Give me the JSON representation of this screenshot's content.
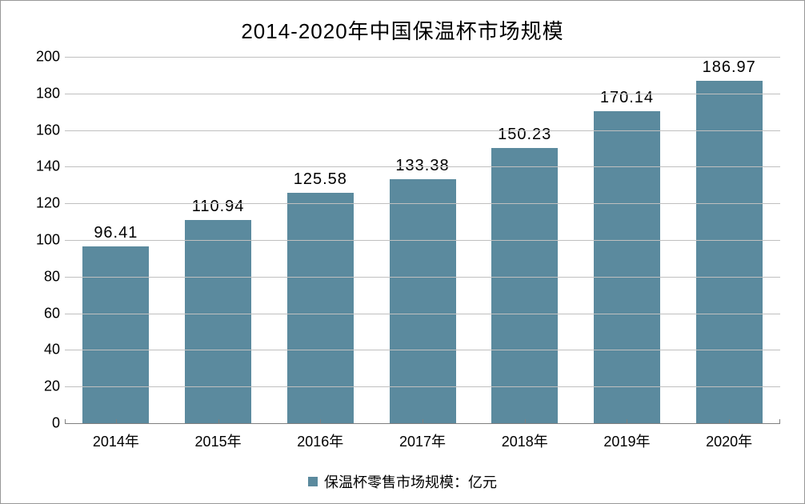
{
  "chart": {
    "type": "bar",
    "title": "2014-2020年中国保温杯市场规模",
    "title_fontsize": 26,
    "label_fontsize": 18,
    "data_label_fontsize": 20,
    "categories": [
      "2014年",
      "2015年",
      "2016年",
      "2017年",
      "2018年",
      "2019年",
      "2020年"
    ],
    "values": [
      96.41,
      110.94,
      125.58,
      133.38,
      150.23,
      170.14,
      186.97
    ],
    "value_labels": [
      "96.41",
      "110.94",
      "125.58",
      "133.38",
      "150.23",
      "170.14",
      "186.97"
    ],
    "bar_color": "#5b8a9e",
    "bar_width": 0.65,
    "ylim": [
      0,
      200
    ],
    "ytick_step": 20,
    "yticks": [
      0,
      20,
      40,
      60,
      80,
      100,
      120,
      140,
      160,
      180,
      200
    ],
    "grid_color": "#bfbfbf",
    "axis_line_color": "#808080",
    "background_color": "#ffffff",
    "border_color": "#999999",
    "text_color": "#000000",
    "legend": {
      "label": "保温杯零售市场规模：亿元",
      "swatch_color": "#5b8a9e",
      "position": "bottom-center"
    }
  }
}
